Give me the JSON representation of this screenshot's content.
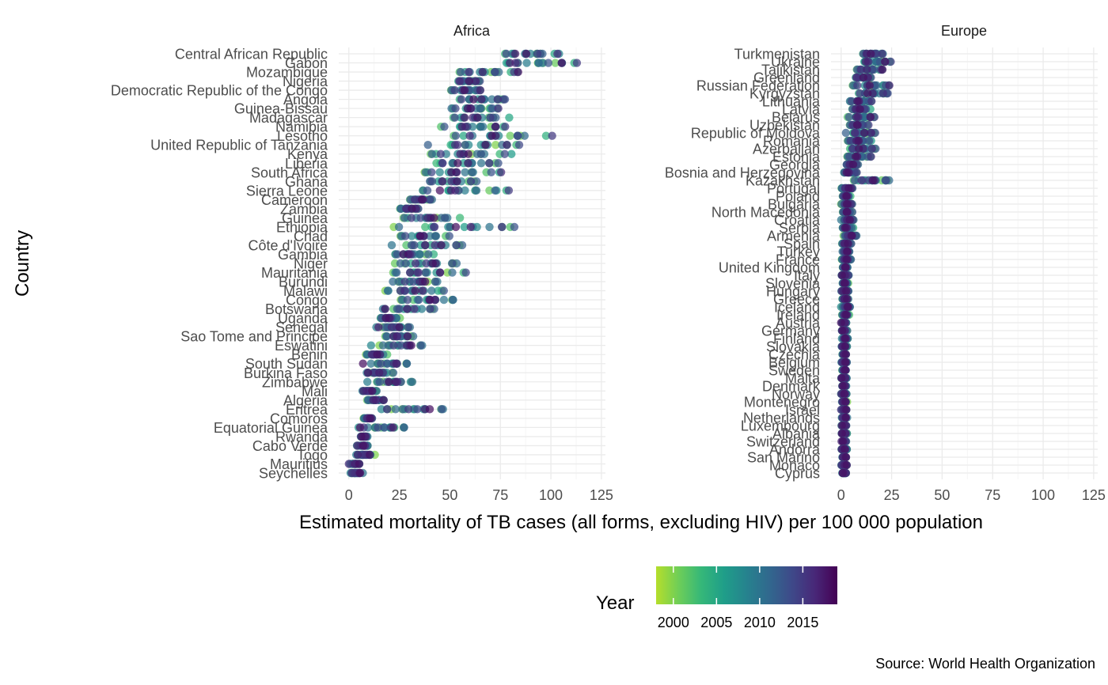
{
  "chart_data": {
    "type": "scatter",
    "facets": [
      {
        "title": "Africa",
        "countries": [
          "Central African Republic",
          "Gabon",
          "Mozambique",
          "Nigeria",
          "Democratic Republic of the Congo",
          "Angola",
          "Guinea-Bissau",
          "Madagascar",
          "Namibia",
          "Lesotho",
          "United Republic of Tanzania",
          "Kenya",
          "Liberia",
          "South Africa",
          "Ghana",
          "Sierra Leone",
          "Cameroon",
          "Zambia",
          "Guinea",
          "Ethiopia",
          "Chad",
          "Côte d'Ivoire",
          "Gambia",
          "Niger",
          "Mauritania",
          "Burundi",
          "Malawi",
          "Congo",
          "Botswana",
          "Uganda",
          "Senegal",
          "Sao Tome and Principe",
          "Eswatini",
          "Benin",
          "South Sudan",
          "Burkina Faso",
          "Zimbabwe",
          "Mali",
          "Algeria",
          "Eritrea",
          "Comoros",
          "Equatorial Guinea",
          "Rwanda",
          "Cabo Verde",
          "Togo",
          "Mauritius",
          "Seychelles"
        ],
        "ranges": [
          [
            75,
            105
          ],
          [
            66,
            122
          ],
          [
            53,
            85
          ],
          [
            51,
            68
          ],
          [
            50,
            66
          ],
          [
            49,
            85
          ],
          [
            50,
            76
          ],
          [
            47,
            81
          ],
          [
            45,
            81
          ],
          [
            45,
            103
          ],
          [
            38,
            91
          ],
          [
            36,
            81
          ],
          [
            35,
            81
          ],
          [
            34,
            76
          ],
          [
            33,
            70
          ],
          [
            33,
            81
          ],
          [
            27,
            45
          ],
          [
            25,
            35
          ],
          [
            21,
            58
          ],
          [
            22,
            88
          ],
          [
            21,
            52
          ],
          [
            21,
            61
          ],
          [
            20,
            42
          ],
          [
            17,
            60
          ],
          [
            18,
            58
          ],
          [
            17,
            50
          ],
          [
            16,
            48
          ],
          [
            16,
            62
          ],
          [
            15,
            44
          ],
          [
            13,
            27
          ],
          [
            13,
            32
          ],
          [
            15,
            34
          ],
          [
            11,
            40
          ],
          [
            7,
            19
          ],
          [
            7,
            33
          ],
          [
            7,
            22
          ],
          [
            6,
            37
          ],
          [
            6,
            14
          ],
          [
            6,
            20
          ],
          [
            14,
            49
          ],
          [
            6,
            13
          ],
          [
            4,
            30
          ],
          [
            5,
            10
          ],
          [
            4,
            10
          ],
          [
            2,
            13
          ],
          [
            0,
            6
          ],
          [
            0,
            7
          ]
        ]
      },
      {
        "title": "Europe",
        "countries": [
          "Turkmenistan",
          "Ukraine",
          "Tajikistan",
          "Greenland",
          "Russian Federation",
          "Kyrgyzstan",
          "Lithuania",
          "Latvia",
          "Belarus",
          "Uzbekistan",
          "Republic of Moldova",
          "Romania",
          "Azerbaijan",
          "Estonia",
          "Georgia",
          "Bosnia and Herzegovina",
          "Kazakhstan",
          "Portugal",
          "Poland",
          "Bulgaria",
          "North Macedonia",
          "Croatia",
          "Serbia",
          "Armenia",
          "Spain",
          "Turkey",
          "France",
          "United Kingdom",
          "Italy",
          "Slovenia",
          "Hungary",
          "Greece",
          "Iceland",
          "Ireland",
          "Austria",
          "Germany",
          "Finland",
          "Slovakia",
          "Czechia",
          "Belgium",
          "Sweden",
          "Malta",
          "Denmark",
          "Norway",
          "Montenegro",
          "Israel",
          "Netherlands",
          "Luxembourg",
          "Albania",
          "Switzerland",
          "Andorra",
          "San Marino",
          "Monaco",
          "Cyprus"
        ],
        "ranges": [
          [
            10,
            21
          ],
          [
            7,
            28
          ],
          [
            7,
            21
          ],
          [
            5,
            17
          ],
          [
            5,
            25
          ],
          [
            5,
            28
          ],
          [
            4,
            16
          ],
          [
            4,
            15
          ],
          [
            3,
            18
          ],
          [
            3,
            14
          ],
          [
            2,
            19
          ],
          [
            2,
            15
          ],
          [
            1,
            20
          ],
          [
            2,
            15
          ],
          [
            1,
            10
          ],
          [
            1,
            8
          ],
          [
            1,
            30
          ],
          [
            0,
            6
          ],
          [
            0,
            5
          ],
          [
            0,
            6
          ],
          [
            0,
            6
          ],
          [
            0,
            7
          ],
          [
            0,
            6
          ],
          [
            0,
            9
          ],
          [
            0,
            5
          ],
          [
            0,
            5
          ],
          [
            0,
            5
          ],
          [
            0,
            4
          ],
          [
            0,
            4
          ],
          [
            0,
            4
          ],
          [
            0,
            4
          ],
          [
            0,
            4
          ],
          [
            0,
            5
          ],
          [
            0,
            4
          ],
          [
            0,
            3
          ],
          [
            0,
            3
          ],
          [
            0,
            4
          ],
          [
            0,
            3
          ],
          [
            0,
            3
          ],
          [
            0,
            3
          ],
          [
            0,
            3
          ],
          [
            0,
            3
          ],
          [
            0,
            3
          ],
          [
            0,
            3
          ],
          [
            0,
            3
          ],
          [
            0,
            3
          ],
          [
            0,
            3
          ],
          [
            0,
            3
          ],
          [
            0,
            3
          ],
          [
            0,
            3
          ],
          [
            0,
            3
          ],
          [
            0,
            3
          ],
          [
            0,
            3
          ],
          [
            0,
            3
          ]
        ]
      }
    ],
    "x_range": [
      -5,
      127
    ],
    "x_ticks": [
      0,
      25,
      50,
      75,
      100,
      125
    ],
    "xlabel": "Estimated mortality of TB cases (all forms, excluding HIV) per 100 000 population",
    "ylabel": "Country",
    "legend": {
      "title": "Year",
      "ticks": [
        2000,
        2005,
        2010,
        2015
      ],
      "range": [
        1998,
        2019
      ],
      "colors": [
        "#b5de2b",
        "#6ece58",
        "#35b779",
        "#1f9e89",
        "#26828e",
        "#31688e",
        "#3e4989",
        "#482878",
        "#440154"
      ]
    },
    "caption": "Source: World Health Organization"
  }
}
